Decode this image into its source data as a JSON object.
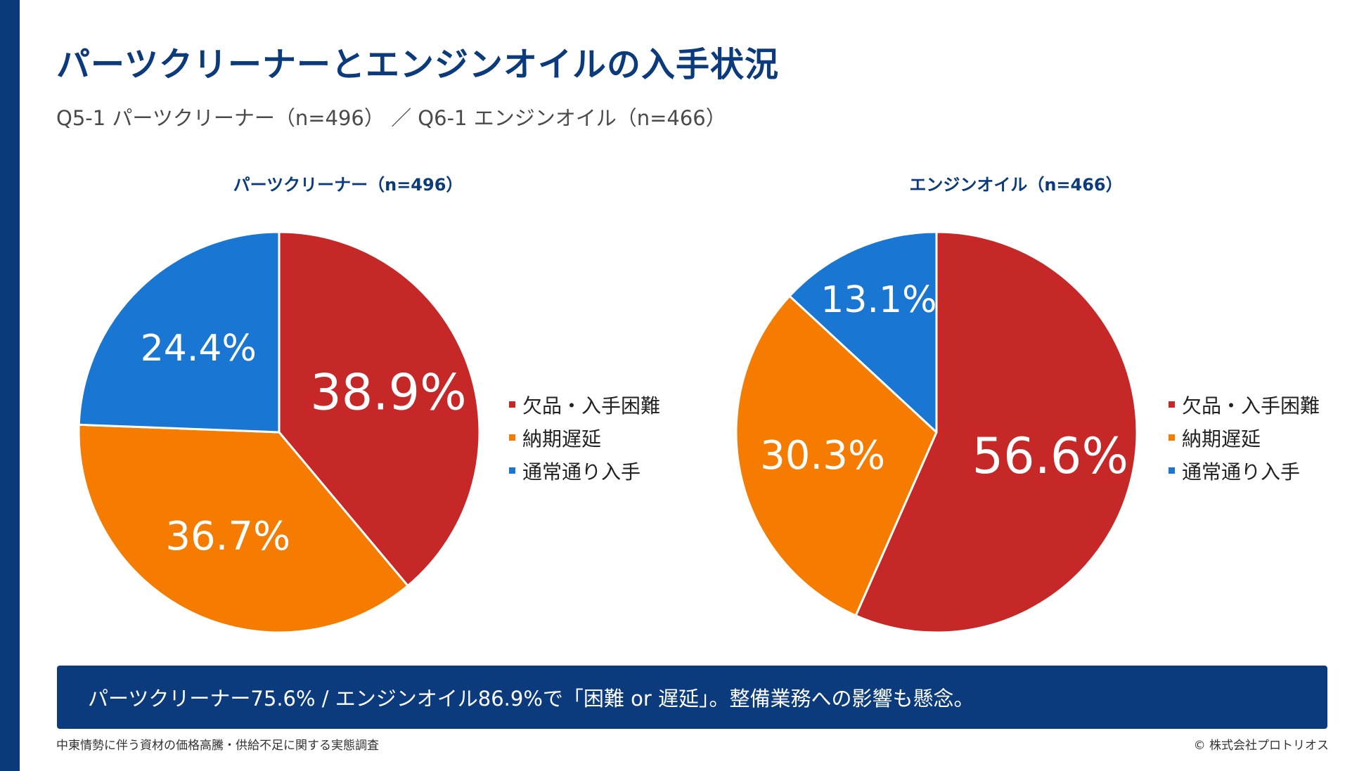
{
  "title": "パーツクリーナーとエンジンオイルの入手状況",
  "subtitle": "Q5-1 パーツクリーナー（n=496） ／ Q6-1 エンジンオイル（n=466）",
  "colors": {
    "bar": "#0a3a7a",
    "title": "#0b3b7c",
    "shortage": "#c62828",
    "delay": "#f57c00",
    "normal": "#1976d2"
  },
  "chart_data": [
    {
      "type": "pie",
      "title": "パーツクリーナー（n=496）",
      "categories": [
        "欠品・入手困難",
        "納期遅延",
        "通常通り入手"
      ],
      "values": [
        38.9,
        36.7,
        24.4
      ],
      "labels": [
        "38.9%",
        "36.7%",
        "24.4%"
      ],
      "colors": [
        "#c62828",
        "#f57c00",
        "#1976d2"
      ],
      "legend": "right"
    },
    {
      "type": "pie",
      "title": "エンジンオイル（n=466）",
      "categories": [
        "欠品・入手困難",
        "納期遅延",
        "通常通り入手"
      ],
      "values": [
        56.6,
        30.3,
        13.1
      ],
      "labels": [
        "56.6%",
        "30.3%",
        "13.1%"
      ],
      "colors": [
        "#c62828",
        "#f57c00",
        "#1976d2"
      ],
      "legend": "right"
    }
  ],
  "banner": "パーツクリーナー75.6% / エンジンオイル86.9%で「困難 or 遅延」。整備業務への影響も懸念。",
  "footer": {
    "source": "中東情勢に伴う資材の価格高騰・供給不足に関する実態調査",
    "copyright": "© 株式会社プロトリオス"
  }
}
